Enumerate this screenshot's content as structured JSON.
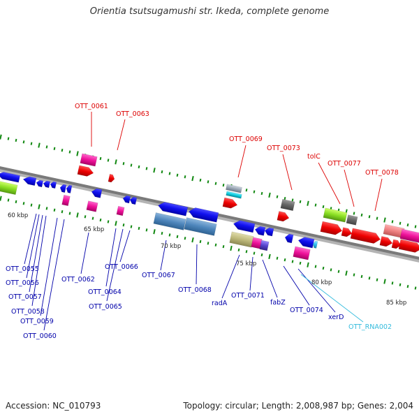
{
  "title": "Orientia tsutsugamushi str. Ikeda, complete genome",
  "footer": {
    "accession": "Accession: NC_010793",
    "summary": "Topology: circular; Length: 2,008,987 bp; Genes: 2,004"
  },
  "colors": {
    "backbone": "#808080",
    "upper_label": "#dd0000",
    "lower_label": "#0000aa",
    "rna_label": "#33bbdd",
    "tick": "#118811"
  },
  "scale_labels": [
    "60 kbp",
    "65 kbp",
    "70 kbp",
    "75 kbp",
    "80 kbp",
    "85 kbp"
  ],
  "upper_labels": [
    "OTT_0061",
    "OTT_0063",
    "OTT_0069",
    "OTT_0073",
    "tolC",
    "OTT_0077",
    "OTT_0078"
  ],
  "lower_labels": [
    "OTT_0055",
    "OTT_0056",
    "OTT_0057",
    "OTT_0058",
    "OTT_0059",
    "OTT_0060",
    "OTT_0062",
    "OTT_0064",
    "OTT_0065",
    "OTT_0066",
    "OTT_0067",
    "OTT_0068",
    "radA",
    "OTT_0071",
    "fabZ",
    "OTT_0074",
    "xerD",
    "OTT_RNA002"
  ]
}
